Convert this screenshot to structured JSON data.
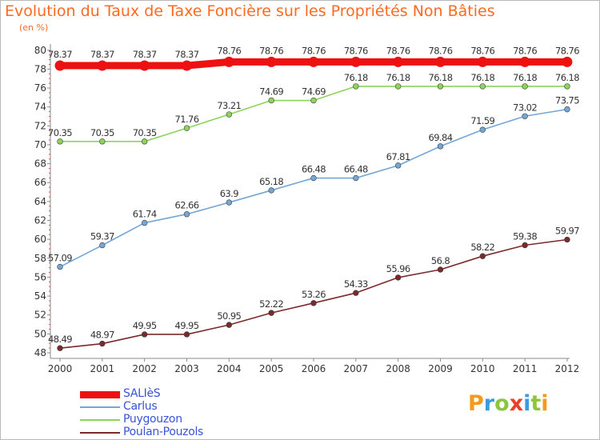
{
  "chart_data": {
    "type": "line",
    "title": "Evolution du Taux de Taxe Foncière sur les Propriétés Non Bâties",
    "unit": "(en %)",
    "categories": [
      "2000",
      "2001",
      "2002",
      "2003",
      "2004",
      "2005",
      "2006",
      "2007",
      "2008",
      "2009",
      "2010",
      "2011",
      "2012"
    ],
    "ylim": [
      48,
      80
    ],
    "yticks": [
      48,
      50,
      52,
      54,
      56,
      58,
      60,
      62,
      64,
      66,
      68,
      70,
      72,
      74,
      76,
      78,
      80
    ],
    "grid": false,
    "legend_position": "bottom-left",
    "series": [
      {
        "name": "SALIèS",
        "color": "#ee1111",
        "values": [
          78.37,
          78.37,
          78.37,
          78.37,
          78.76,
          78.76,
          78.76,
          78.76,
          78.76,
          78.76,
          78.76,
          78.76,
          78.76
        ],
        "labels": [
          "78.37",
          "78.37",
          "78.37",
          "78.37",
          "78.76",
          "78.76",
          "78.76",
          "78.76",
          "78.76",
          "78.76",
          "78.76",
          "78.76",
          "78.76"
        ]
      },
      {
        "name": "Carlus",
        "color": "#74a6d6",
        "values": [
          57.09,
          59.37,
          61.74,
          62.66,
          63.9,
          65.18,
          66.48,
          66.48,
          67.81,
          69.84,
          71.59,
          73.02,
          73.75
        ],
        "labels": [
          "57.09",
          "59.37",
          "61.74",
          "62.66",
          "63.9",
          "65.18",
          "66.48",
          "66.48",
          "67.81",
          "69.84",
          "71.59",
          "73.02",
          "73.75"
        ]
      },
      {
        "name": "Puygouzon",
        "color": "#8cd45a",
        "values": [
          70.35,
          70.35,
          70.35,
          71.76,
          73.21,
          74.69,
          74.69,
          76.18,
          76.18,
          76.18,
          76.18,
          76.18,
          76.18
        ],
        "labels": [
          "70.35",
          "70.35",
          "70.35",
          "71.76",
          "73.21",
          "74.69",
          "74.69",
          "76.18",
          "76.18",
          "76.18",
          "76.18",
          "76.18",
          "76.18"
        ]
      },
      {
        "name": "Poulan-Pouzols",
        "color": "#7a2a2a",
        "values": [
          48.49,
          48.97,
          49.95,
          49.95,
          50.95,
          52.22,
          53.26,
          54.33,
          55.96,
          56.8,
          58.22,
          59.38,
          59.97
        ],
        "labels": [
          "48.49",
          "48.97",
          "49.95",
          "49.95",
          "50.95",
          "52.22",
          "53.26",
          "54.33",
          "55.96",
          "56.8",
          "58.22",
          "59.38",
          "59.97"
        ]
      }
    ]
  },
  "logo": {
    "text": "Proxiti",
    "letter_colors": [
      "#f39a1a",
      "#3a9be0",
      "#8cc63f",
      "#e8402b",
      "#3a9be0",
      "#8cc63f",
      "#f39a1a"
    ]
  }
}
